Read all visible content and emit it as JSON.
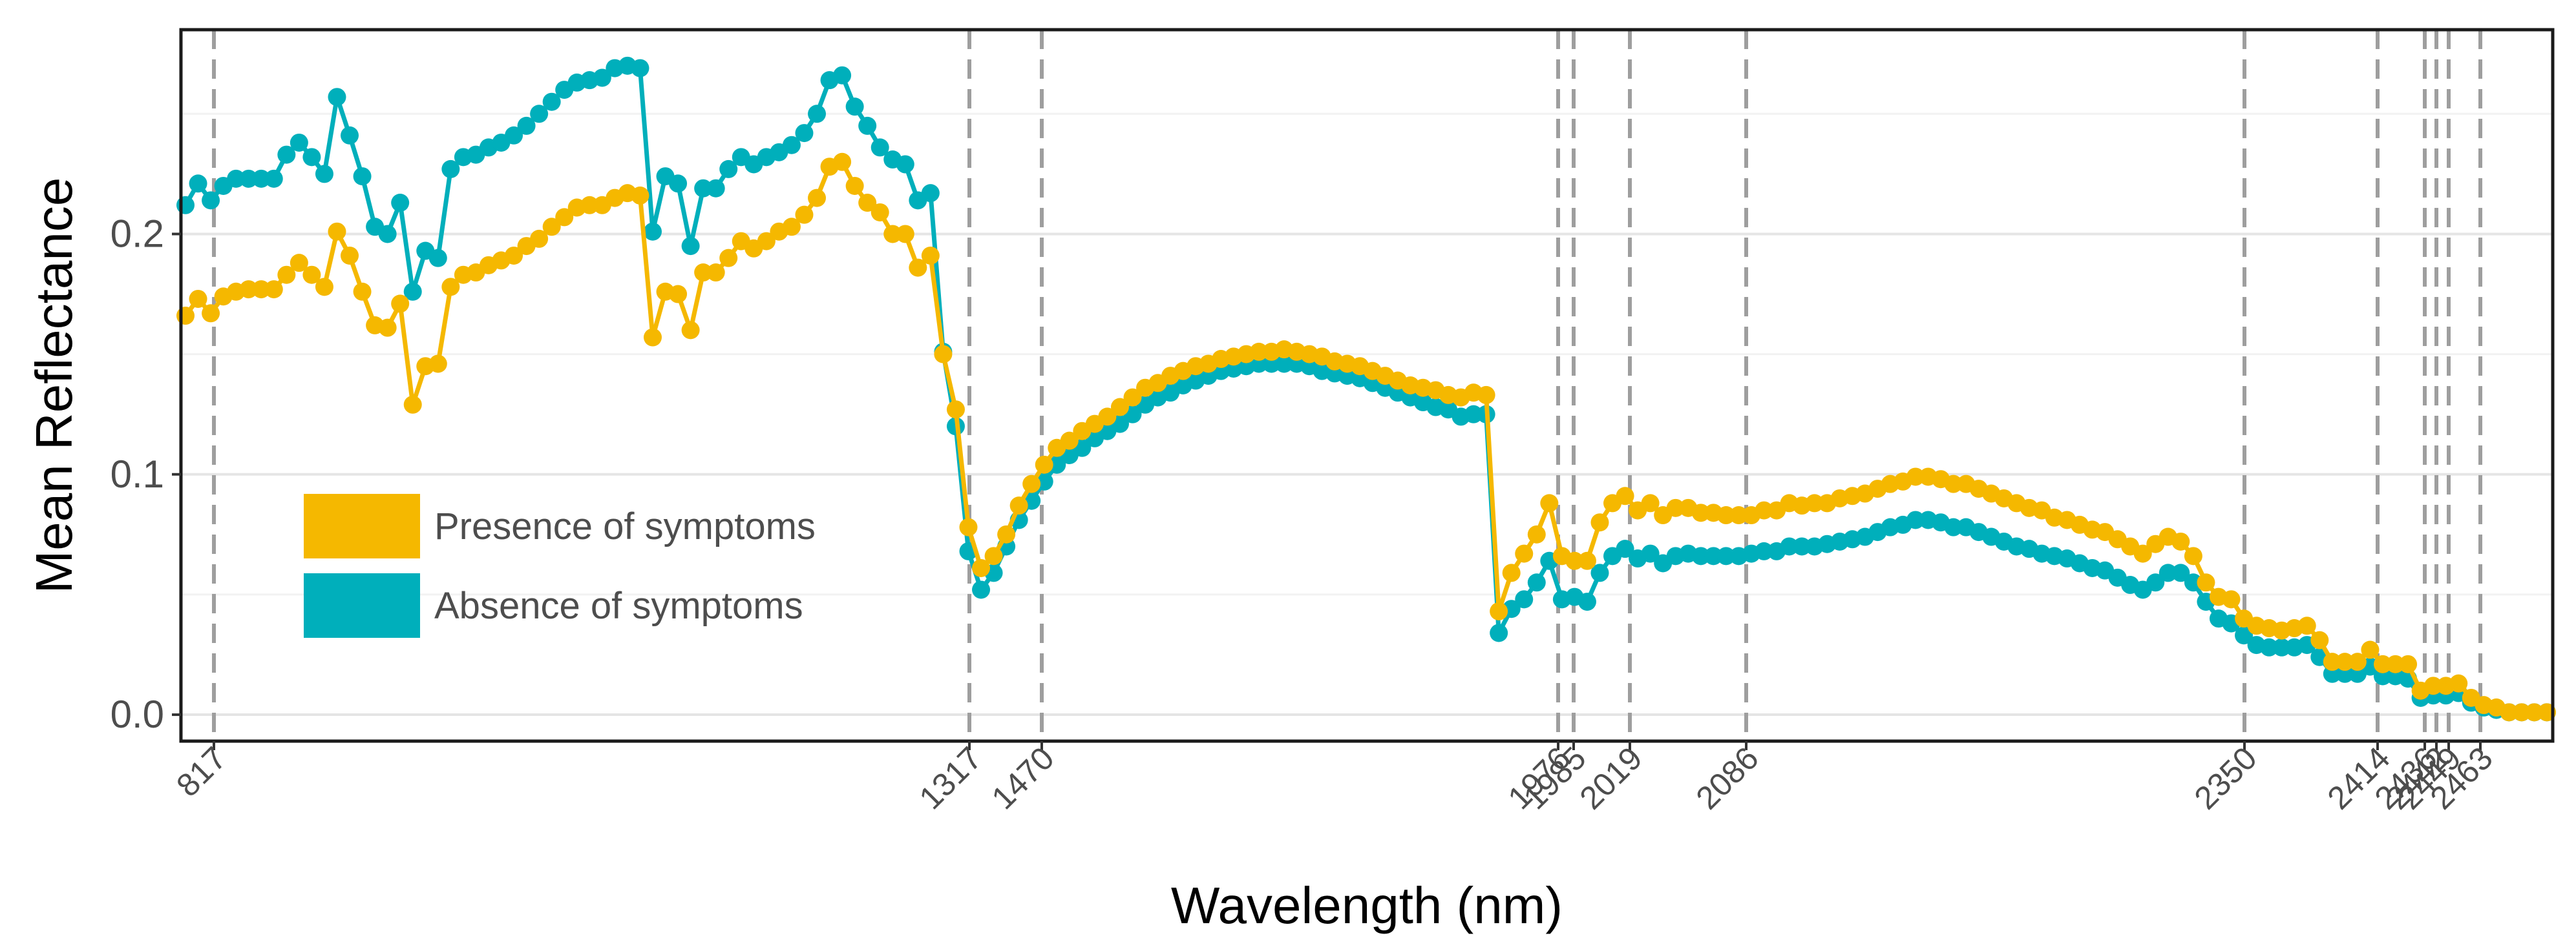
{
  "chart_data": {
    "type": "line",
    "title": "",
    "xlabel": "Wavelength (nm)",
    "ylabel": "Mean Reflectance",
    "ylim": [
      -0.011,
      0.285
    ],
    "y_ticks": [
      0.0,
      0.1,
      0.2
    ],
    "y_tick_labels": [
      "0.0",
      "0.1",
      "0.2"
    ],
    "x_ticks": [
      817,
      1317,
      1470,
      1976,
      1985,
      2019,
      2086,
      2350,
      2414,
      2436,
      2442,
      2449,
      2463
    ],
    "x_tick_labels": [
      "817",
      "1317",
      "1470",
      "1976",
      "1985",
      "2019",
      "2086",
      "2350",
      "2414",
      "2436",
      "2442",
      "2449",
      "2463"
    ],
    "x_axis_note": "wavelengths plotted at equal spacing by band index (non-linear axis)",
    "grid": true,
    "legend_position": "lower-left",
    "series": [
      {
        "name": "Presence of symptoms",
        "color": "#F5B800",
        "values": [
          0.166,
          0.173,
          0.167,
          0.174,
          0.176,
          0.177,
          0.177,
          0.177,
          0.183,
          0.188,
          0.183,
          0.178,
          0.201,
          0.191,
          0.176,
          0.162,
          0.161,
          0.171,
          0.129,
          0.145,
          0.146,
          0.178,
          0.183,
          0.184,
          0.187,
          0.189,
          0.191,
          0.195,
          0.198,
          0.203,
          0.207,
          0.211,
          0.212,
          0.212,
          0.215,
          0.217,
          0.216,
          0.157,
          0.176,
          0.175,
          0.16,
          0.184,
          0.184,
          0.19,
          0.197,
          0.194,
          0.197,
          0.201,
          0.203,
          0.208,
          0.215,
          0.228,
          0.23,
          0.22,
          0.213,
          0.209,
          0.2,
          0.2,
          0.186,
          0.191,
          0.15,
          0.127,
          0.078,
          0.061,
          0.066,
          0.075,
          0.087,
          0.096,
          0.104,
          0.111,
          0.114,
          0.118,
          0.121,
          0.124,
          0.128,
          0.132,
          0.136,
          0.138,
          0.141,
          0.143,
          0.145,
          0.146,
          0.148,
          0.149,
          0.15,
          0.151,
          0.151,
          0.152,
          0.151,
          0.15,
          0.149,
          0.147,
          0.146,
          0.145,
          0.143,
          0.141,
          0.139,
          0.137,
          0.136,
          0.135,
          0.133,
          0.132,
          0.134,
          0.133,
          0.043,
          0.059,
          0.067,
          0.075,
          0.088,
          0.066,
          0.064,
          0.064,
          0.08,
          0.088,
          0.091,
          0.085,
          0.088,
          0.083,
          0.086,
          0.086,
          0.084,
          0.084,
          0.083,
          0.083,
          0.083,
          0.085,
          0.085,
          0.088,
          0.087,
          0.088,
          0.088,
          0.09,
          0.091,
          0.092,
          0.094,
          0.096,
          0.097,
          0.099,
          0.099,
          0.098,
          0.096,
          0.096,
          0.094,
          0.092,
          0.09,
          0.088,
          0.086,
          0.085,
          0.082,
          0.081,
          0.079,
          0.077,
          0.076,
          0.073,
          0.07,
          0.067,
          0.071,
          0.074,
          0.072,
          0.066,
          0.055,
          0.049,
          0.048,
          0.04,
          0.037,
          0.036,
          0.035,
          0.036,
          0.037,
          0.031,
          0.022,
          0.022,
          0.022,
          0.027,
          0.021,
          0.021,
          0.021,
          0.01,
          0.012,
          0.012,
          0.013,
          0.007,
          0.004,
          0.003,
          0.001,
          0.001,
          0.001,
          0.001
        ]
      },
      {
        "name": "Absence of symptoms",
        "color": "#00AFBB",
        "values": [
          0.212,
          0.221,
          0.214,
          0.22,
          0.223,
          0.223,
          0.223,
          0.223,
          0.233,
          0.238,
          0.232,
          0.225,
          0.257,
          0.241,
          0.224,
          0.203,
          0.2,
          0.213,
          0.176,
          0.193,
          0.19,
          0.227,
          0.232,
          0.233,
          0.236,
          0.238,
          0.241,
          0.245,
          0.25,
          0.255,
          0.26,
          0.263,
          0.264,
          0.265,
          0.269,
          0.27,
          0.269,
          0.201,
          0.224,
          0.221,
          0.195,
          0.219,
          0.219,
          0.227,
          0.232,
          0.229,
          0.232,
          0.234,
          0.237,
          0.242,
          0.25,
          0.264,
          0.266,
          0.253,
          0.245,
          0.236,
          0.231,
          0.229,
          0.214,
          0.217,
          0.151,
          0.12,
          0.068,
          0.052,
          0.059,
          0.07,
          0.081,
          0.089,
          0.097,
          0.104,
          0.108,
          0.111,
          0.115,
          0.118,
          0.121,
          0.125,
          0.129,
          0.132,
          0.134,
          0.137,
          0.139,
          0.141,
          0.143,
          0.144,
          0.145,
          0.146,
          0.146,
          0.146,
          0.146,
          0.145,
          0.143,
          0.142,
          0.141,
          0.14,
          0.138,
          0.136,
          0.134,
          0.132,
          0.13,
          0.128,
          0.127,
          0.124,
          0.125,
          0.125,
          0.034,
          0.044,
          0.048,
          0.055,
          0.064,
          0.048,
          0.049,
          0.047,
          0.059,
          0.066,
          0.069,
          0.065,
          0.067,
          0.063,
          0.066,
          0.067,
          0.066,
          0.066,
          0.066,
          0.066,
          0.067,
          0.068,
          0.068,
          0.07,
          0.07,
          0.07,
          0.071,
          0.072,
          0.073,
          0.074,
          0.076,
          0.078,
          0.079,
          0.081,
          0.081,
          0.08,
          0.078,
          0.078,
          0.076,
          0.074,
          0.072,
          0.07,
          0.069,
          0.067,
          0.066,
          0.065,
          0.063,
          0.061,
          0.06,
          0.057,
          0.054,
          0.052,
          0.055,
          0.059,
          0.059,
          0.055,
          0.047,
          0.04,
          0.038,
          0.033,
          0.029,
          0.028,
          0.028,
          0.028,
          0.029,
          0.024,
          0.017,
          0.017,
          0.017,
          0.02,
          0.016,
          0.016,
          0.015,
          0.007,
          0.008,
          0.008,
          0.009,
          0.005,
          0.003,
          0.002,
          0.001,
          0.001,
          0.001,
          0.001
        ]
      }
    ]
  }
}
